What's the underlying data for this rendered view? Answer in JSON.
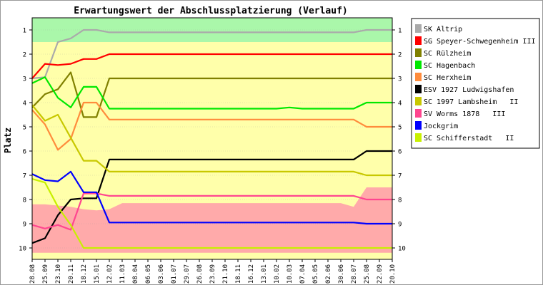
{
  "chart_data": {
    "type": "line",
    "title": "Erwartungswert der Abschlussplatzierung (Verlauf)",
    "ylabel": "Platz",
    "xlabel": "",
    "ylim": [
      10,
      1
    ],
    "yticks": [
      "1",
      "2",
      "3",
      "4",
      "5",
      "6",
      "7",
      "8",
      "9",
      "10"
    ],
    "x": [
      "28.08",
      "25.09",
      "23.10",
      "20.11",
      "18.12",
      "15.01",
      "12.02",
      "11.03",
      "08.04",
      "06.05",
      "03.06",
      "01.07",
      "29.07",
      "26.08",
      "23.09",
      "21.10",
      "18.11",
      "16.12",
      "13.01",
      "10.02",
      "10.03",
      "07.04",
      "05.05",
      "02.06",
      "30.06",
      "28.07",
      "25.08",
      "22.09",
      "20.10"
    ],
    "bands": {
      "top": {
        "color": "#aaf7aa",
        "upper": [
          0.5,
          0.5,
          0.5,
          0.5,
          0.5,
          0.5,
          0.5,
          0.5,
          0.5,
          0.5,
          0.5,
          0.5,
          0.5,
          0.5,
          0.5,
          0.5,
          0.5,
          0.5,
          0.5,
          0.5,
          0.5,
          0.5,
          0.5,
          0.5,
          0.5,
          0.5,
          0.5,
          0.5,
          0.5
        ],
        "lower": [
          1.5,
          1.5,
          1.5,
          1.5,
          1.5,
          1.5,
          1.5,
          1.5,
          1.5,
          1.5,
          1.5,
          1.5,
          1.5,
          1.5,
          1.5,
          1.5,
          1.5,
          1.5,
          1.5,
          1.5,
          1.5,
          1.5,
          1.5,
          1.5,
          1.5,
          1.5,
          1.5,
          1.5,
          1.5
        ]
      },
      "middle": {
        "color": "#ffffaa"
      },
      "bottom": {
        "color": "#ffaaaa",
        "upper": [
          8.2,
          8.2,
          8.25,
          8.3,
          8.4,
          8.45,
          8.4,
          8.15,
          8.15,
          8.15,
          8.15,
          8.15,
          8.15,
          8.15,
          8.15,
          8.15,
          8.15,
          8.15,
          8.15,
          8.15,
          8.15,
          8.15,
          8.15,
          8.15,
          8.15,
          8.3,
          7.5,
          7.5,
          7.5
        ],
        "lower": [
          10.2,
          10.2,
          10.2,
          10.2,
          10.2,
          10.2,
          10.2,
          10.2,
          10.2,
          10.2,
          10.2,
          10.2,
          10.2,
          10.2,
          10.2,
          10.2,
          10.2,
          10.2,
          10.2,
          10.2,
          10.2,
          10.2,
          10.2,
          10.2,
          10.2,
          10.2,
          10.2,
          10.2,
          10.2
        ]
      }
    },
    "series": [
      {
        "name": "SK Altrip",
        "color": "#aaaaaa",
        "values": [
          3.0,
          2.95,
          1.5,
          1.35,
          1.0,
          1.0,
          1.1,
          1.1,
          1.1,
          1.1,
          1.1,
          1.1,
          1.1,
          1.1,
          1.1,
          1.1,
          1.1,
          1.1,
          1.1,
          1.1,
          1.1,
          1.1,
          1.1,
          1.1,
          1.1,
          1.1,
          1.0,
          1.0,
          1.0
        ]
      },
      {
        "name": "SG Speyer-Schwegenheim III",
        "color": "#ff0000",
        "values": [
          3.0,
          2.4,
          2.45,
          2.4,
          2.2,
          2.2,
          2.0,
          2.0,
          2.0,
          2.0,
          2.0,
          2.0,
          2.0,
          2.0,
          2.0,
          2.0,
          2.0,
          2.0,
          2.0,
          2.0,
          2.0,
          2.0,
          2.0,
          2.0,
          2.0,
          2.0,
          2.0,
          2.0,
          2.0
        ]
      },
      {
        "name": "SC Rülzheim",
        "color": "#808000",
        "values": [
          4.2,
          3.65,
          3.45,
          2.75,
          4.6,
          4.6,
          3.0,
          3.0,
          3.0,
          3.0,
          3.0,
          3.0,
          3.0,
          3.0,
          3.0,
          3.0,
          3.0,
          3.0,
          3.0,
          3.0,
          3.0,
          3.0,
          3.0,
          3.0,
          3.0,
          3.0,
          3.0,
          3.0,
          3.0
        ]
      },
      {
        "name": "SC Hagenbach",
        "color": "#00e800",
        "values": [
          3.2,
          2.95,
          3.8,
          4.2,
          3.35,
          3.35,
          4.25,
          4.25,
          4.25,
          4.25,
          4.25,
          4.25,
          4.25,
          4.25,
          4.25,
          4.25,
          4.25,
          4.25,
          4.25,
          4.25,
          4.2,
          4.25,
          4.25,
          4.25,
          4.25,
          4.25,
          4.0,
          4.0,
          4.0
        ]
      },
      {
        "name": "SC Herxheim",
        "color": "#ff8c3c",
        "values": [
          4.3,
          4.9,
          5.95,
          5.5,
          4.0,
          4.0,
          4.7,
          4.7,
          4.7,
          4.7,
          4.7,
          4.7,
          4.7,
          4.7,
          4.7,
          4.7,
          4.7,
          4.7,
          4.7,
          4.7,
          4.7,
          4.7,
          4.7,
          4.7,
          4.7,
          4.7,
          5.0,
          5.0,
          5.0
        ]
      },
      {
        "name": "ESV 1927 Ludwigshafen",
        "color": "#000000",
        "values": [
          9.8,
          9.6,
          8.65,
          8.0,
          7.95,
          7.95,
          6.35,
          6.35,
          6.35,
          6.35,
          6.35,
          6.35,
          6.35,
          6.35,
          6.35,
          6.35,
          6.35,
          6.35,
          6.35,
          6.35,
          6.35,
          6.35,
          6.35,
          6.35,
          6.35,
          6.35,
          6.0,
          6.0,
          6.0
        ]
      },
      {
        "name": "SC 1997 Lambsheim   II",
        "color": "#c8c800",
        "values": [
          4.1,
          4.75,
          4.5,
          5.45,
          6.4,
          6.4,
          6.85,
          6.85,
          6.85,
          6.85,
          6.85,
          6.85,
          6.85,
          6.85,
          6.85,
          6.85,
          6.85,
          6.85,
          6.85,
          6.85,
          6.85,
          6.85,
          6.85,
          6.85,
          6.85,
          6.85,
          7.0,
          7.0,
          7.0
        ]
      },
      {
        "name": "SV Worms 1878   III",
        "color": "#ff4690",
        "values": [
          9.05,
          9.2,
          9.05,
          9.25,
          7.75,
          7.75,
          7.85,
          7.85,
          7.85,
          7.85,
          7.85,
          7.85,
          7.85,
          7.85,
          7.85,
          7.85,
          7.85,
          7.85,
          7.85,
          7.85,
          7.85,
          7.85,
          7.85,
          7.85,
          7.85,
          7.85,
          8.0,
          8.0,
          8.0
        ]
      },
      {
        "name": "Jockgrim",
        "color": "#0000ff",
        "values": [
          6.95,
          7.2,
          7.25,
          6.85,
          7.7,
          7.7,
          8.95,
          8.95,
          8.95,
          8.95,
          8.95,
          8.95,
          8.95,
          8.95,
          8.95,
          8.95,
          8.95,
          8.95,
          8.95,
          8.95,
          8.95,
          8.95,
          8.95,
          8.95,
          8.95,
          8.95,
          9.0,
          9.0,
          9.0
        ]
      },
      {
        "name": "SC Schifferstadt   II",
        "color": "#c8f000",
        "values": [
          7.15,
          7.3,
          8.3,
          9.05,
          10.0,
          10.0,
          10.0,
          10.0,
          10.0,
          10.0,
          10.0,
          10.0,
          10.0,
          10.0,
          10.0,
          10.0,
          10.0,
          10.0,
          10.0,
          10.0,
          10.0,
          10.0,
          10.0,
          10.0,
          10.0,
          10.0,
          10.0,
          10.0,
          10.0
        ]
      }
    ]
  }
}
